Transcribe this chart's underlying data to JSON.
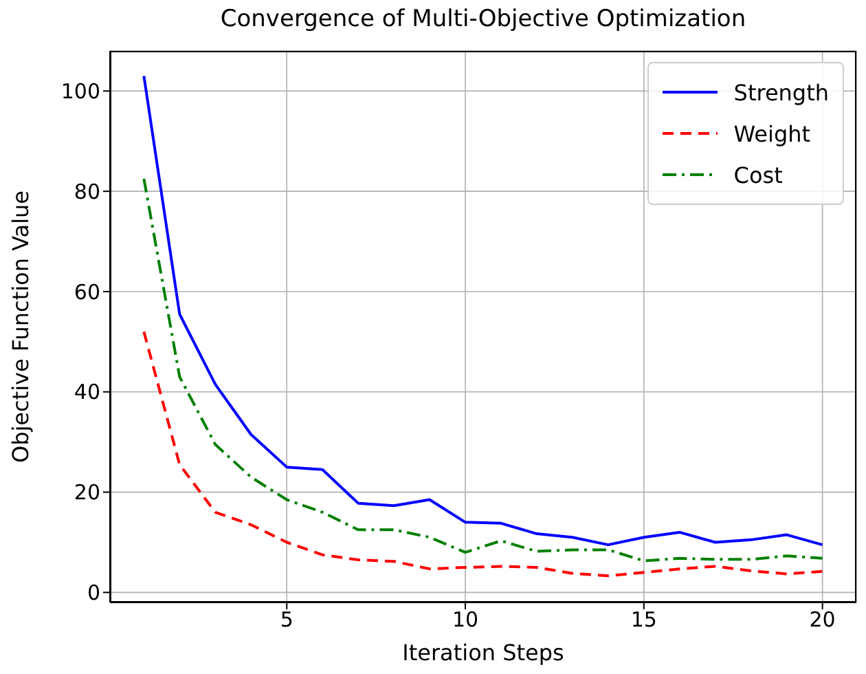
{
  "chart_data": {
    "type": "line",
    "title": "Convergence of Multi-Objective Optimization",
    "xlabel": "Iteration Steps",
    "ylabel": "Objective Function Value",
    "x": [
      1,
      2,
      3,
      4,
      5,
      6,
      7,
      8,
      9,
      10,
      11,
      12,
      13,
      14,
      15,
      16,
      17,
      18,
      19,
      20
    ],
    "series": [
      {
        "name": "Strength",
        "color": "#0000ff",
        "line_style": "solid",
        "values": [
          103,
          55.5,
          41.5,
          31.5,
          25,
          24.5,
          17.8,
          17.3,
          18.5,
          14,
          13.8,
          11.7,
          11,
          9.5,
          11,
          12,
          10,
          10.5,
          11.5,
          9.5
        ]
      },
      {
        "name": "Weight",
        "color": "#ff0000",
        "line_style": "dashed",
        "values": [
          52,
          25.5,
          16,
          13.5,
          10,
          7.5,
          6.5,
          6.2,
          4.7,
          5,
          5.2,
          5,
          3.8,
          3.3,
          4,
          4.7,
          5.2,
          4.3,
          3.7,
          4.2
        ]
      },
      {
        "name": "Cost",
        "color": "#008000",
        "line_style": "dashdot",
        "values": [
          82.5,
          43,
          29.5,
          23,
          18.5,
          16,
          12.5,
          12.5,
          11,
          8,
          10.3,
          8.2,
          8.5,
          8.5,
          6.3,
          6.8,
          6.6,
          6.6,
          7.3,
          6.8
        ]
      }
    ],
    "xlim": [
      0.05,
      20.95
    ],
    "xticks": [
      5,
      10,
      15,
      20
    ],
    "ylim": [
      -2,
      108
    ],
    "yticks": [
      0,
      20,
      40,
      60,
      80,
      100
    ],
    "grid": true,
    "legend": "top right",
    "marker": "none"
  }
}
